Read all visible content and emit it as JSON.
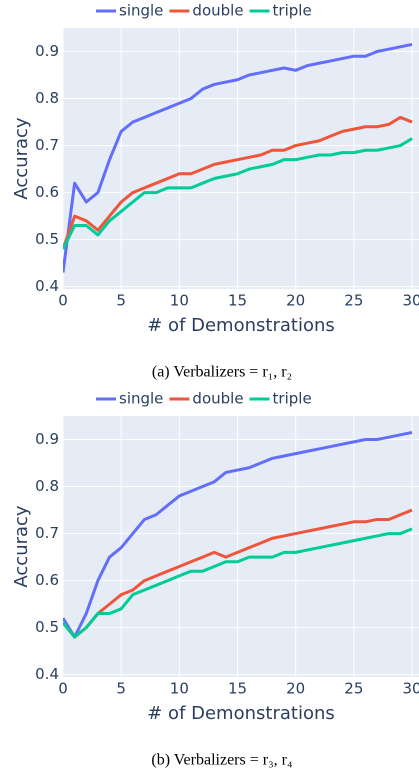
{
  "chart_data": [
    {
      "type": "line",
      "y_label": "Accuracy",
      "x_label": "# of Demonstrations",
      "caption": "(a) Verbalizers = r₁, r₂",
      "x": [
        0,
        1,
        2,
        3,
        4,
        5,
        6,
        7,
        8,
        9,
        10,
        11,
        12,
        13,
        14,
        15,
        16,
        17,
        18,
        19,
        20,
        21,
        22,
        23,
        24,
        25,
        26,
        27,
        28,
        29,
        30
      ],
      "series": [
        {
          "name": "single",
          "color": "#636efa",
          "values": [
            0.43,
            0.62,
            0.58,
            0.6,
            0.67,
            0.73,
            0.75,
            0.76,
            0.77,
            0.78,
            0.79,
            0.8,
            0.82,
            0.83,
            0.835,
            0.84,
            0.85,
            0.855,
            0.86,
            0.865,
            0.86,
            0.87,
            0.875,
            0.88,
            0.885,
            0.89,
            0.89,
            0.9,
            0.905,
            0.91,
            0.915
          ]
        },
        {
          "name": "double",
          "color": "#ef553b",
          "values": [
            0.48,
            0.55,
            0.54,
            0.52,
            0.55,
            0.58,
            0.6,
            0.61,
            0.62,
            0.63,
            0.64,
            0.64,
            0.65,
            0.66,
            0.665,
            0.67,
            0.675,
            0.68,
            0.69,
            0.69,
            0.7,
            0.705,
            0.71,
            0.72,
            0.73,
            0.735,
            0.74,
            0.74,
            0.745,
            0.76,
            0.75
          ]
        },
        {
          "name": "triple",
          "color": "#00cc96",
          "values": [
            0.48,
            0.53,
            0.53,
            0.51,
            0.54,
            0.56,
            0.58,
            0.6,
            0.6,
            0.61,
            0.61,
            0.61,
            0.62,
            0.63,
            0.635,
            0.64,
            0.65,
            0.655,
            0.66,
            0.67,
            0.67,
            0.675,
            0.68,
            0.68,
            0.685,
            0.685,
            0.69,
            0.69,
            0.695,
            0.7,
            0.715
          ]
        }
      ],
      "xlim": [
        0,
        30.6
      ],
      "xticks": [
        0,
        5,
        10,
        15,
        20,
        25,
        30
      ],
      "ylim": [
        0.395,
        0.95
      ],
      "yticks": [
        0.4,
        0.5,
        0.6,
        0.7,
        0.8,
        0.9
      ],
      "grid": true
    },
    {
      "type": "line",
      "y_label": "Accuracy",
      "x_label": "# of Demonstrations",
      "caption": "(b) Verbalizers = r₃, r₄",
      "x": [
        0,
        1,
        2,
        3,
        4,
        5,
        6,
        7,
        8,
        9,
        10,
        11,
        12,
        13,
        14,
        15,
        16,
        17,
        18,
        19,
        20,
        21,
        22,
        23,
        24,
        25,
        26,
        27,
        28,
        29,
        30
      ],
      "series": [
        {
          "name": "single",
          "color": "#636efa",
          "values": [
            0.52,
            0.48,
            0.53,
            0.6,
            0.65,
            0.67,
            0.7,
            0.73,
            0.74,
            0.76,
            0.78,
            0.79,
            0.8,
            0.81,
            0.83,
            0.835,
            0.84,
            0.85,
            0.86,
            0.865,
            0.87,
            0.875,
            0.88,
            0.885,
            0.89,
            0.895,
            0.9,
            0.9,
            0.905,
            0.91,
            0.915
          ]
        },
        {
          "name": "double",
          "color": "#ef553b",
          "values": [
            0.51,
            0.48,
            0.5,
            0.53,
            0.55,
            0.57,
            0.58,
            0.6,
            0.61,
            0.62,
            0.63,
            0.64,
            0.65,
            0.66,
            0.65,
            0.66,
            0.67,
            0.68,
            0.69,
            0.695,
            0.7,
            0.705,
            0.71,
            0.715,
            0.72,
            0.725,
            0.725,
            0.73,
            0.73,
            0.74,
            0.75
          ]
        },
        {
          "name": "triple",
          "color": "#00cc96",
          "values": [
            0.51,
            0.48,
            0.5,
            0.53,
            0.53,
            0.54,
            0.57,
            0.58,
            0.59,
            0.6,
            0.61,
            0.62,
            0.62,
            0.63,
            0.64,
            0.64,
            0.65,
            0.65,
            0.65,
            0.66,
            0.66,
            0.665,
            0.67,
            0.675,
            0.68,
            0.685,
            0.69,
            0.695,
            0.7,
            0.7,
            0.71
          ]
        }
      ],
      "xlim": [
        0,
        30.6
      ],
      "xticks": [
        0,
        5,
        10,
        15,
        20,
        25,
        30
      ],
      "ylim": [
        0.395,
        0.95
      ],
      "yticks": [
        0.4,
        0.5,
        0.6,
        0.7,
        0.8,
        0.9
      ],
      "grid": true
    }
  ]
}
